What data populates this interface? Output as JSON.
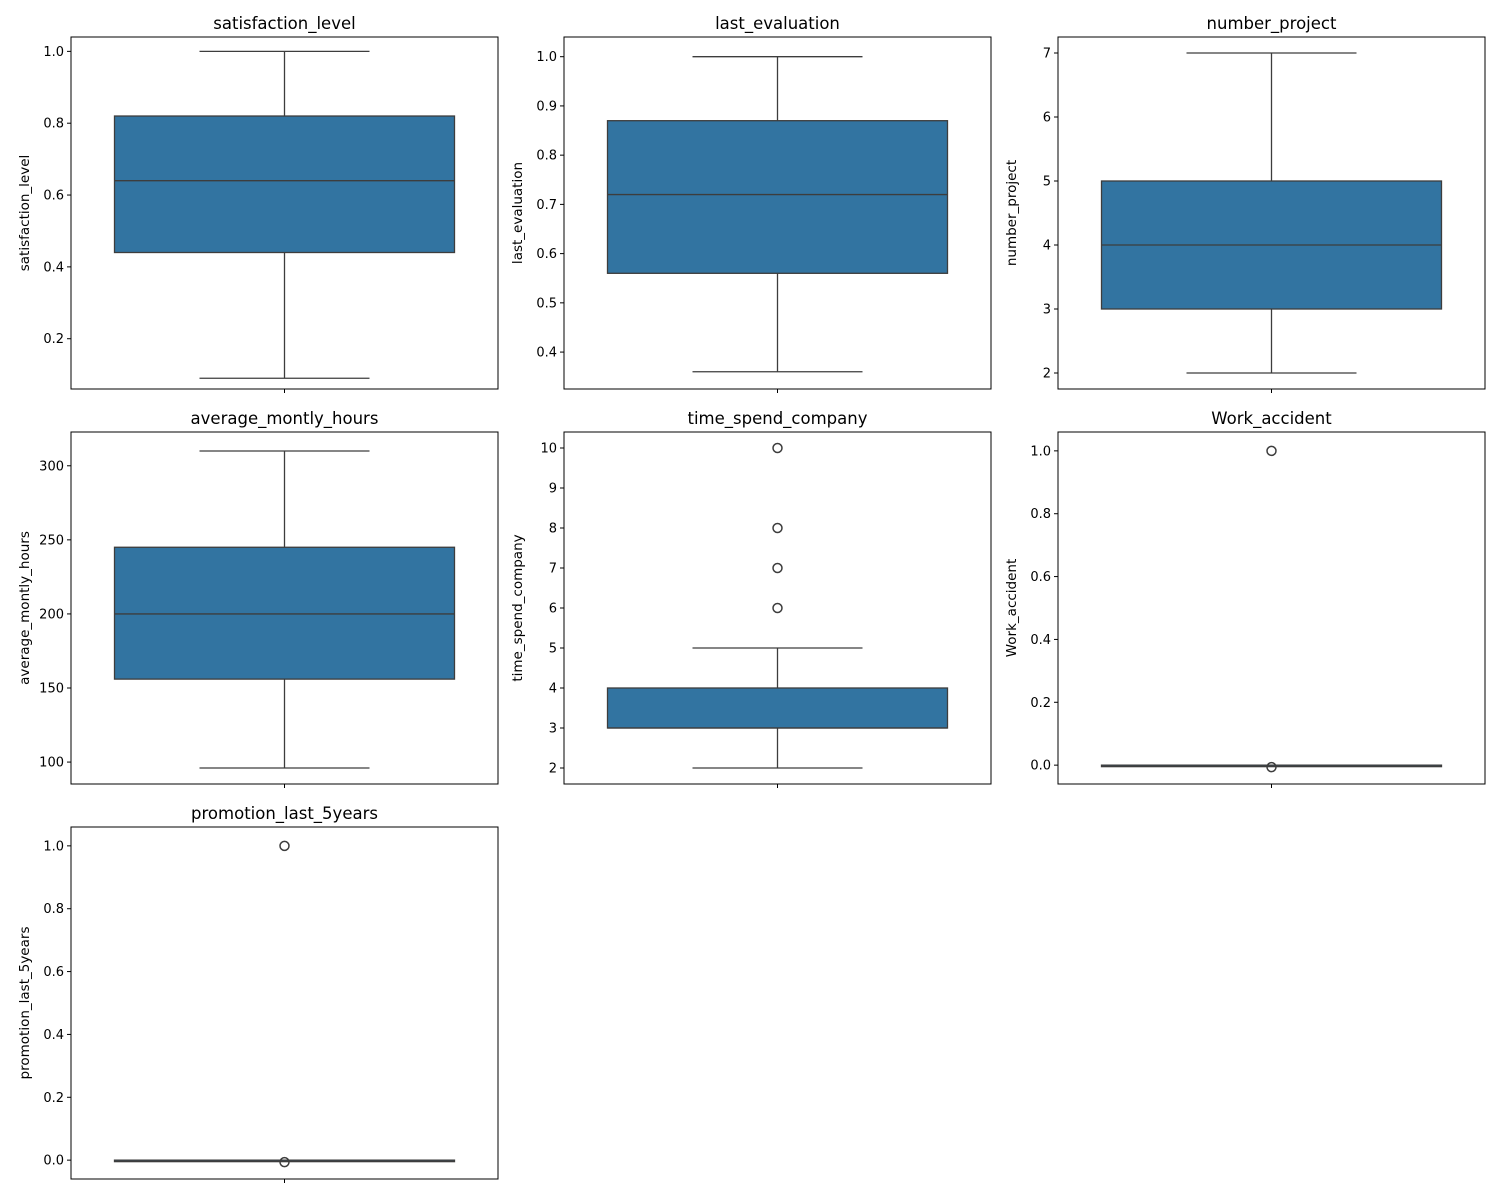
{
  "chart_data": [
    {
      "type": "box",
      "title": "satisfaction_level",
      "ylabel": "satisfaction_level",
      "ylim": [
        0.06,
        1.04
      ],
      "yticks": [
        0.2,
        0.4,
        0.6,
        0.8,
        1.0
      ],
      "yticklabels": [
        "0.2",
        "0.4",
        "0.6",
        "0.8",
        "1.0"
      ],
      "box": {
        "whisker_low": 0.09,
        "q1": 0.44,
        "median": 0.64,
        "q3": 0.82,
        "whisker_high": 1.0
      },
      "outliers": []
    },
    {
      "type": "box",
      "title": "last_evaluation",
      "ylabel": "last_evaluation",
      "ylim": [
        0.325,
        1.04
      ],
      "yticks": [
        0.4,
        0.5,
        0.6,
        0.7,
        0.8,
        0.9,
        1.0
      ],
      "yticklabels": [
        "0.4",
        "0.5",
        "0.6",
        "0.7",
        "0.8",
        "0.9",
        "1.0"
      ],
      "box": {
        "whisker_low": 0.36,
        "q1": 0.56,
        "median": 0.72,
        "q3": 0.87,
        "whisker_high": 1.0
      },
      "outliers": []
    },
    {
      "type": "box",
      "title": "number_project",
      "ylabel": "number_project",
      "ylim": [
        1.75,
        7.25
      ],
      "yticks": [
        2,
        3,
        4,
        5,
        6,
        7
      ],
      "yticklabels": [
        "2",
        "3",
        "4",
        "5",
        "6",
        "7"
      ],
      "box": {
        "whisker_low": 2,
        "q1": 3,
        "median": 4,
        "q3": 5,
        "whisker_high": 7
      },
      "outliers": []
    },
    {
      "type": "box",
      "title": "average_montly_hours",
      "ylabel": "average_montly_hours",
      "ylim": [
        85.2,
        322.8
      ],
      "yticks": [
        100,
        150,
        200,
        250,
        300
      ],
      "yticklabels": [
        "100",
        "150",
        "200",
        "250",
        "300"
      ],
      "box": {
        "whisker_low": 96,
        "q1": 156,
        "median": 200,
        "q3": 245,
        "whisker_high": 310
      },
      "outliers": []
    },
    {
      "type": "box",
      "title": "time_spend_company",
      "ylabel": "time_spend_company",
      "ylim": [
        1.6,
        10.4
      ],
      "yticks": [
        2,
        3,
        4,
        5,
        6,
        7,
        8,
        9,
        10
      ],
      "yticklabels": [
        "2",
        "3",
        "4",
        "5",
        "6",
        "7",
        "8",
        "9",
        "10"
      ],
      "box": {
        "whisker_low": 2,
        "q1": 3,
        "median": 3,
        "q3": 4,
        "whisker_high": 5
      },
      "outliers": [
        6,
        7,
        8,
        10
      ]
    },
    {
      "type": "box",
      "title": "Work_accident",
      "ylabel": "Work_accident",
      "ylim": [
        -0.06,
        1.06
      ],
      "yticks": [
        0.0,
        0.2,
        0.4,
        0.6,
        0.8,
        1.0
      ],
      "yticklabels": [
        "0.0",
        "0.2",
        "0.4",
        "0.6",
        "0.8",
        "1.0"
      ],
      "box": {
        "whisker_low": 0,
        "q1": 0,
        "median": 0,
        "q3": 0,
        "whisker_high": 0
      },
      "outliers": [
        1
      ]
    },
    {
      "type": "box",
      "title": "promotion_last_5years",
      "ylabel": "promotion_last_5years",
      "ylim": [
        -0.06,
        1.06
      ],
      "yticks": [
        0.0,
        0.2,
        0.4,
        0.6,
        0.8,
        1.0
      ],
      "yticklabels": [
        "0.0",
        "0.2",
        "0.4",
        "0.6",
        "0.8",
        "1.0"
      ],
      "box": {
        "whisker_low": 0,
        "q1": 0,
        "median": 0,
        "q3": 0,
        "whisker_high": 0
      },
      "outliers": [
        1
      ]
    }
  ],
  "style": {
    "box_fill": "#3274a1",
    "line_color": "#3d3d3d",
    "axes_color": "#000000"
  }
}
